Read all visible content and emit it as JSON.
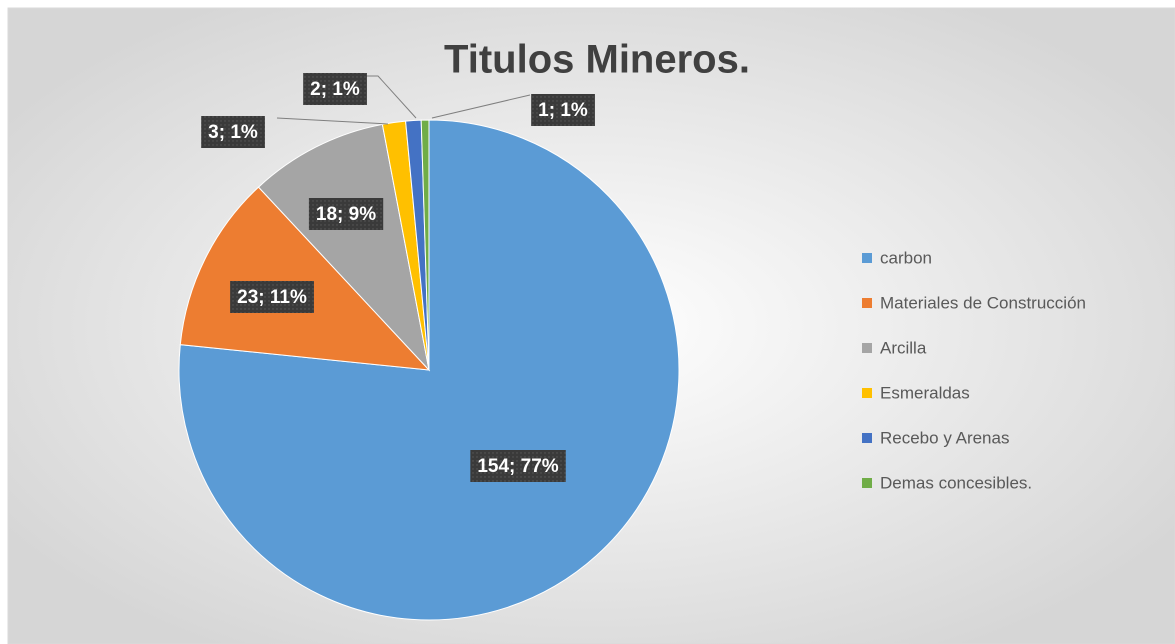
{
  "chart_data": {
    "type": "pie",
    "title": "Titulos Mineros.",
    "categories": [
      "carbon",
      "Materiales de Construcción",
      "Arcilla",
      "Esmeraldas",
      "Recebo y Arenas",
      "Demas concesibles."
    ],
    "values": [
      154,
      23,
      18,
      3,
      2,
      1
    ],
    "value_labels": [
      "154; 77%",
      "23; 11%",
      "18; 9%",
      "3; 1%",
      "2; 1%",
      "1; 1%"
    ],
    "colors": [
      "#5b9bd5",
      "#ed7d31",
      "#a5a5a5",
      "#ffc000",
      "#4472c4",
      "#70ad47"
    ],
    "legend": "right"
  }
}
